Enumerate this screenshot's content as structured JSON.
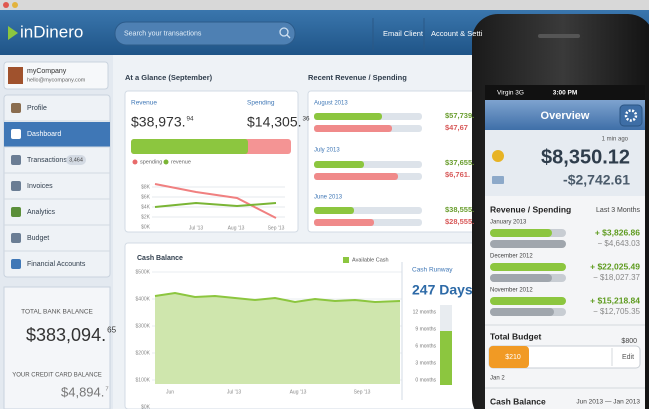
{
  "header": {
    "logo": "inDinero",
    "search_placeholder": "Search your transactions",
    "nav": [
      "Email Client",
      "Account & Setti"
    ]
  },
  "sidebar": {
    "company": "myCompany",
    "email": "hello@mycompany.com",
    "menu": [
      "Profile",
      "Dashboard",
      "Transactions",
      "Invoices",
      "Analytics",
      "Budget",
      "Financial Accounts"
    ],
    "transactions_badge": "3,464",
    "bank_balance_label": "TOTAL BANK BALANCE",
    "bank_balance": "$383,094.",
    "bank_balance_cents": "65",
    "credit_label": "YOUR CREDIT CARD BALANCE",
    "credit_balance": "$4,894.",
    "credit_cents": "7"
  },
  "glance": {
    "title": "At a Glance (September)",
    "revenue_label": "Revenue",
    "revenue": "$38,973.",
    "revenue_cents": "94",
    "spending_label": "Spending",
    "spending": "$14,305.",
    "spending_cents": "36",
    "legend": [
      "spending",
      "revenue"
    ],
    "yticks": [
      "$8K",
      "$6K",
      "$4K",
      "$2K",
      "$0K"
    ],
    "xticks": [
      "Jul '13",
      "Aug '13",
      "Sep '13"
    ]
  },
  "recent": {
    "title": "Recent Revenue / Spending",
    "months": [
      {
        "month": "August 2013",
        "revenue": "$57,739.",
        "spending": "$47,67"
      },
      {
        "month": "July 2013",
        "revenue": "$37,655.",
        "spending": "$6,761."
      },
      {
        "month": "June 2013",
        "revenue": "$38,555.",
        "spending": "$28,555."
      }
    ]
  },
  "cash": {
    "title": "Cash Balance",
    "legend": "Available Cash",
    "yticks": [
      "$500K",
      "$400K",
      "$300K",
      "$200K",
      "$100K",
      "$0K"
    ],
    "xticks": [
      "Jun",
      "Jul '13",
      "Aug '13",
      "Sep '13"
    ],
    "runway_title": "Cash Runway",
    "runway": "247 Days",
    "runway_ticks": [
      "12 months",
      "9 months",
      "6 months",
      "3 months",
      "0 months"
    ]
  },
  "phone": {
    "carrier": "Virgin 3G",
    "time": "3:00 PM",
    "title": "Overview",
    "updated": "1 min ago",
    "balance": "$8,350.12",
    "credit": "-$2,742.61",
    "section_title": "Revenue / Spending",
    "section_period": "Last 3 Months",
    "months": [
      {
        "month": "January 2013",
        "revenue": "+ $3,826.86",
        "spending": "− $4,643.03"
      },
      {
        "month": "December 2012",
        "revenue": "+ $22,025.49",
        "spending": "− $18,027.37"
      },
      {
        "month": "November 2012",
        "revenue": "+ $15,218.84",
        "spending": "− $12,705.35"
      }
    ],
    "budget_title": "Total Budget",
    "budget_total": "$800",
    "budget_spent": "$210",
    "budget_edit": "Edit",
    "budget_date": "Jan 2",
    "cash_title": "Cash Balance",
    "cash_period": "Jun 2013 — Jan 2013"
  }
}
